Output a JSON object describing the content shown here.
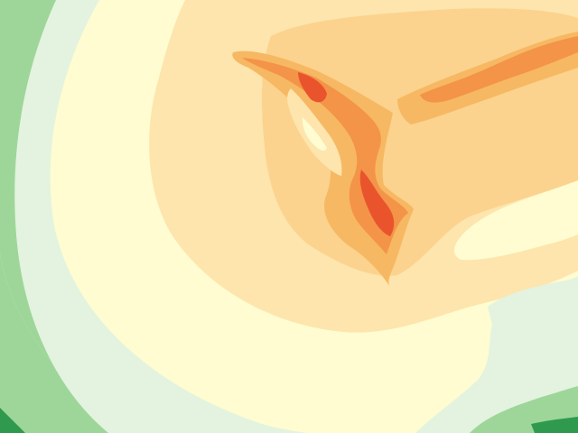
{
  "map": {
    "kind": "filled-contour-field",
    "legend_visible": false,
    "text_labels_visible": false,
    "contour_levels": [
      {
        "level": 1,
        "name": "deep-green",
        "color": "#2f9a4e"
      },
      {
        "level": 2,
        "name": "green",
        "color": "#9ed69a"
      },
      {
        "level": 3,
        "name": "pale-mint",
        "color": "#e3f3df"
      },
      {
        "level": 4,
        "name": "pale-yellow",
        "color": "#fefcd0"
      },
      {
        "level": 5,
        "name": "light-peach",
        "color": "#fde5ad"
      },
      {
        "level": 6,
        "name": "light-orange",
        "color": "#fbd38e"
      },
      {
        "level": 7,
        "name": "orange",
        "color": "#f7b863"
      },
      {
        "level": 8,
        "name": "dark-orange",
        "color": "#f39448"
      },
      {
        "level": 9,
        "name": "red-orange",
        "color": "#e9542d"
      }
    ]
  }
}
